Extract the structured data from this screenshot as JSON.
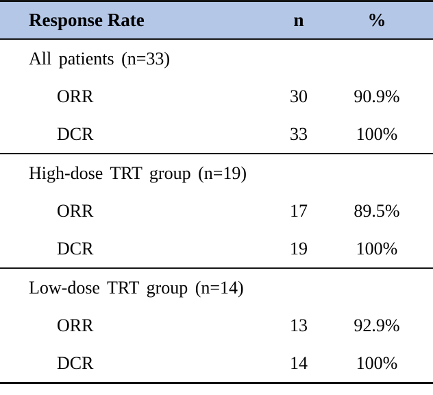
{
  "table": {
    "header": {
      "col_label": "Response Rate",
      "col_n": "n",
      "col_pct": "%"
    },
    "sections": [
      {
        "label": "All patients (n=33)",
        "rows": [
          {
            "label": "ORR",
            "n": "30",
            "pct": "90.9%"
          },
          {
            "label": "DCR",
            "n": "33",
            "pct": "100%"
          }
        ]
      },
      {
        "label": "High-dose TRT group (n=19)",
        "rows": [
          {
            "label": "ORR",
            "n": "17",
            "pct": "89.5%"
          },
          {
            "label": "DCR",
            "n": "19",
            "pct": "100%"
          }
        ]
      },
      {
        "label": "Low-dose TRT group (n=14)",
        "rows": [
          {
            "label": "ORR",
            "n": "13",
            "pct": "92.9%"
          },
          {
            "label": "DCR",
            "n": "14",
            "pct": "100%"
          }
        ]
      }
    ],
    "colors": {
      "header_bg": "#b4c7e7",
      "border": "#141414",
      "text": "#000000"
    }
  }
}
